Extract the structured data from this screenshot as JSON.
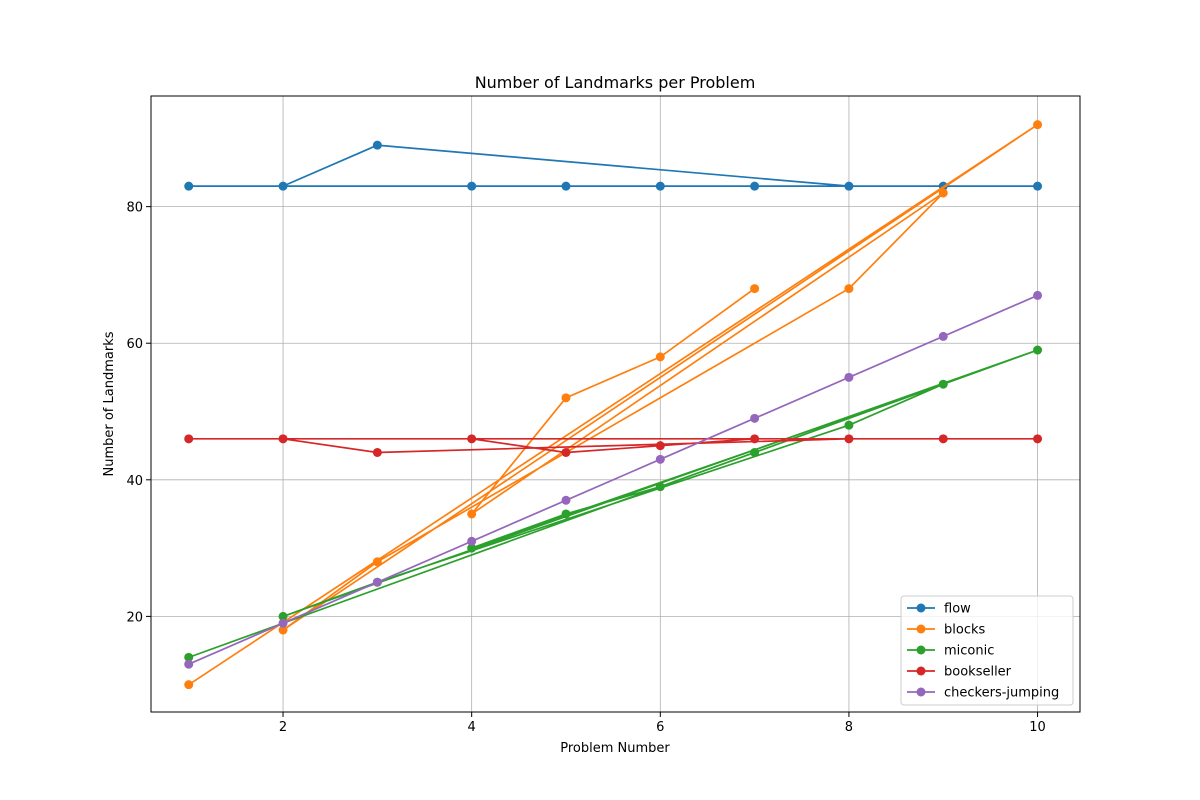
{
  "chart_data": {
    "type": "line",
    "title": "Number of Landmarks per Problem",
    "xlabel": "Problem Number",
    "ylabel": "Number of Landmarks",
    "xlim": [
      0.6,
      10.45
    ],
    "ylim": [
      6,
      96.2
    ],
    "xticks": [
      2,
      4,
      6,
      8,
      10
    ],
    "yticks": [
      20,
      40,
      60,
      80
    ],
    "grid": true,
    "legend_position": "lower-right",
    "series": [
      {
        "name": "flow",
        "color": "#1f77b4",
        "points": [
          [
            1,
            83
          ],
          [
            10,
            83
          ],
          [
            2,
            83
          ],
          [
            3,
            89
          ],
          [
            8,
            83
          ],
          [
            9,
            83
          ],
          [
            4,
            83
          ],
          [
            5,
            83
          ],
          [
            6,
            83
          ],
          [
            7,
            83
          ]
        ]
      },
      {
        "name": "blocks",
        "color": "#ff7f0e",
        "points": [
          [
            1,
            10
          ],
          [
            10,
            92
          ],
          [
            2,
            18
          ],
          [
            3,
            28
          ],
          [
            8,
            68
          ],
          [
            9,
            82
          ],
          [
            4,
            35
          ],
          [
            5,
            52
          ],
          [
            6,
            58
          ],
          [
            7,
            68
          ]
        ]
      },
      {
        "name": "miconic",
        "color": "#2ca02c",
        "points": [
          [
            1,
            14
          ],
          [
            10,
            59
          ],
          [
            2,
            20
          ],
          [
            3,
            25
          ],
          [
            8,
            48
          ],
          [
            9,
            54
          ],
          [
            4,
            30
          ],
          [
            5,
            35
          ],
          [
            6,
            39
          ],
          [
            7,
            44
          ]
        ]
      },
      {
        "name": "bookseller",
        "color": "#d62728",
        "points": [
          [
            1,
            46
          ],
          [
            10,
            46
          ],
          [
            2,
            46
          ],
          [
            3,
            44
          ],
          [
            8,
            46
          ],
          [
            9,
            46
          ],
          [
            4,
            46
          ],
          [
            5,
            44
          ],
          [
            6,
            45
          ],
          [
            7,
            46
          ]
        ]
      },
      {
        "name": "checkers-jumping",
        "color": "#9467bd",
        "points": [
          [
            1,
            13
          ],
          [
            10,
            67
          ],
          [
            2,
            19
          ],
          [
            3,
            25
          ],
          [
            8,
            55
          ],
          [
            9,
            61
          ],
          [
            4,
            31
          ],
          [
            5,
            37
          ],
          [
            6,
            43
          ],
          [
            7,
            49
          ]
        ]
      }
    ]
  }
}
